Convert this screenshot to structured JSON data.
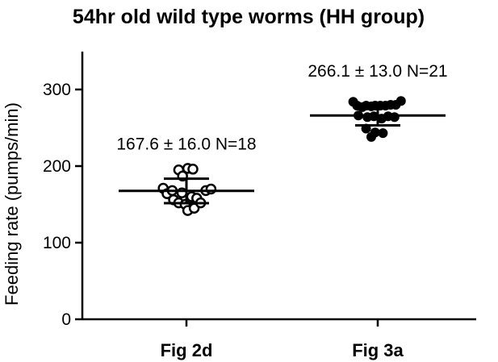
{
  "chart_data": {
    "type": "scatter",
    "title": "54hr old wild type worms (HH group)",
    "ylabel": "Feeding rate (pumps/min)",
    "xlabel": "",
    "ylim": [
      0,
      350
    ],
    "yticks": [
      0,
      100,
      200,
      300
    ],
    "categories": [
      "Fig 2d",
      "Fig 3a"
    ],
    "series": [
      {
        "category": "Fig 2d",
        "marker": "open-circle",
        "mean": 167.6,
        "sd": 16.0,
        "n": 18,
        "annotation": "167.6 ± 16.0 N=18",
        "points": [
          {
            "offset": -0.36,
            "y": 171
          },
          {
            "offset": -0.3,
            "y": 164
          },
          {
            "offset": -0.22,
            "y": 168
          },
          {
            "offset": -0.2,
            "y": 156
          },
          {
            "offset": -0.12,
            "y": 152
          },
          {
            "offset": -0.07,
            "y": 165
          },
          {
            "offset": -0.02,
            "y": 150
          },
          {
            "offset": 0.02,
            "y": 142
          },
          {
            "offset": 0.08,
            "y": 160
          },
          {
            "offset": 0.12,
            "y": 145
          },
          {
            "offset": 0.16,
            "y": 158
          },
          {
            "offset": 0.22,
            "y": 152
          },
          {
            "offset": 0.3,
            "y": 168
          },
          {
            "offset": 0.38,
            "y": 170
          },
          {
            "offset": -0.12,
            "y": 195
          },
          {
            "offset": -0.06,
            "y": 187
          },
          {
            "offset": 0.02,
            "y": 197
          },
          {
            "offset": 0.1,
            "y": 196
          }
        ]
      },
      {
        "category": "Fig 3a",
        "marker": "filled-circle",
        "mean": 266.1,
        "sd": 13.0,
        "n": 21,
        "annotation": "266.1 ± 13.0 N=21",
        "points": [
          {
            "offset": -0.38,
            "y": 284
          },
          {
            "offset": -0.32,
            "y": 279
          },
          {
            "offset": -0.24,
            "y": 277
          },
          {
            "offset": -0.18,
            "y": 279
          },
          {
            "offset": -0.1,
            "y": 278
          },
          {
            "offset": -0.04,
            "y": 279
          },
          {
            "offset": 0.04,
            "y": 279
          },
          {
            "offset": 0.12,
            "y": 279
          },
          {
            "offset": 0.2,
            "y": 280
          },
          {
            "offset": 0.28,
            "y": 280
          },
          {
            "offset": 0.36,
            "y": 285
          },
          {
            "offset": -0.3,
            "y": 266
          },
          {
            "offset": -0.16,
            "y": 264
          },
          {
            "offset": -0.06,
            "y": 265
          },
          {
            "offset": 0.06,
            "y": 262
          },
          {
            "offset": 0.16,
            "y": 265
          },
          {
            "offset": 0.26,
            "y": 264
          },
          {
            "offset": -0.18,
            "y": 249
          },
          {
            "offset": -0.04,
            "y": 244
          },
          {
            "offset": 0.08,
            "y": 243
          },
          {
            "offset": -0.1,
            "y": 238
          }
        ]
      }
    ]
  }
}
